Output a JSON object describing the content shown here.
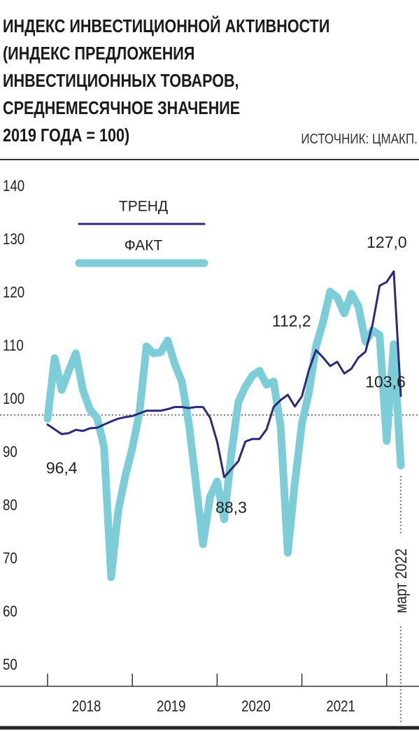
{
  "chart_data": {
    "type": "line",
    "title": "ИНДЕКС ИНВЕСТИЦИОННОЙ АКТИВНОСТИ\n(ИНДЕКС ПРЕДЛОЖЕНИЯ\nИНВЕСТИЦИОННЫХ  ТОВАРОВ,\nСРЕДНЕМЕСЯЧНОЕ ЗНАЧЕНИЕ\n2019 ГОДА = 100)",
    "source": "ИСТОЧНИК: ЦМАКП.",
    "categories": [
      null,
      null,
      null,
      null,
      null,
      null,
      "2018",
      null,
      null,
      null,
      null,
      null,
      null,
      null,
      null,
      null,
      null,
      null,
      "2019",
      null,
      null,
      null,
      null,
      null,
      null,
      null,
      null,
      null,
      null,
      null,
      "2020",
      null,
      null,
      null,
      null,
      null,
      null,
      null,
      null,
      null,
      null,
      null,
      "2021",
      null,
      null,
      null,
      null,
      null,
      null,
      null,
      null
    ],
    "series": [
      {
        "name": "ФАКТ",
        "color": "#7ccdd8",
        "width": 11,
        "values": [
          99.3,
          110.7,
          104.7,
          108.3,
          111.6,
          104.7,
          101,
          99.5,
          94,
          69.5,
          82,
          88.5,
          93.8,
          100.4,
          112.9,
          111.6,
          111.8,
          114,
          109.6,
          106.3,
          98.4,
          87.2,
          75.7,
          84.6,
          87.5,
          80.4,
          92.5,
          102.4,
          105.3,
          107.4,
          108.3,
          105.7,
          106.3,
          97.8,
          74.1,
          87.2,
          98.4,
          104.3,
          112.9,
          117.5,
          123.2,
          122.1,
          119.1,
          122.8,
          120.4,
          113.8,
          115.9,
          115,
          95.1,
          113.3,
          90.5
        ]
      },
      {
        "name": "ТРЕНД",
        "color": "#2b2a7a",
        "width": 3,
        "values": [
          98.2,
          97.3,
          96.4,
          96.6,
          97.2,
          97.0,
          97.5,
          97.6,
          98.2,
          98.8,
          99.3,
          99.6,
          99.8,
          100.3,
          100.8,
          100.8,
          100.8,
          101.1,
          101.5,
          101.5,
          101.3,
          101.5,
          101.5,
          99.5,
          95,
          88.3,
          89.8,
          91.3,
          95,
          95.5,
          95.5,
          97.3,
          101.5,
          102.8,
          103.8,
          101.6,
          103.5,
          108.5,
          112.2,
          110.8,
          109.2,
          110,
          107.8,
          108.7,
          110.8,
          111.9,
          117,
          124.3,
          125,
          127.0,
          103.6
        ],
        "value_labels": [
          null,
          null,
          "96,4",
          null,
          null,
          null,
          null,
          null,
          null,
          null,
          null,
          null,
          null,
          null,
          null,
          null,
          null,
          null,
          null,
          null,
          null,
          null,
          null,
          null,
          null,
          "88,3",
          null,
          null,
          null,
          null,
          null,
          null,
          null,
          null,
          null,
          null,
          null,
          null,
          "112,2",
          null,
          null,
          null,
          null,
          null,
          null,
          null,
          null,
          null,
          null,
          "127,0",
          "103,6"
        ]
      }
    ],
    "ylim": [
      49,
      145
    ],
    "yticks": [
      50,
      60,
      70,
      80,
      90,
      100,
      110,
      120,
      130,
      140
    ],
    "reference_line": 100,
    "annotation": "март 2022",
    "legend": "top-left"
  }
}
